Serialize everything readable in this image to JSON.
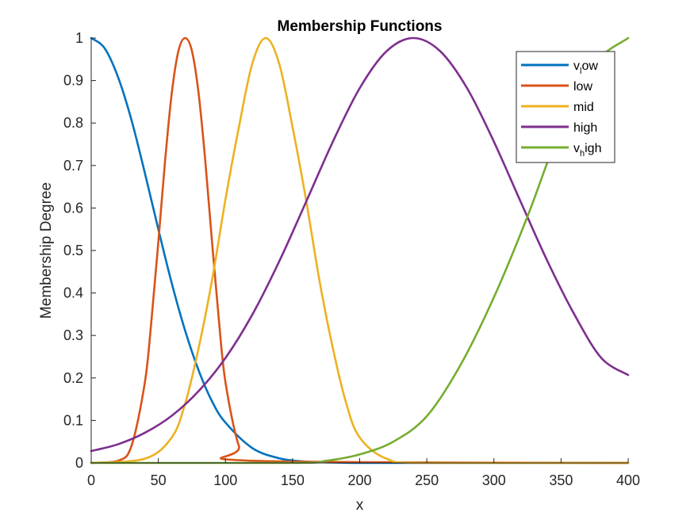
{
  "chart_data": {
    "type": "line",
    "title": "Membership Functions",
    "xlabel": "x",
    "ylabel": "Membership Degree",
    "xlim": [
      0,
      400
    ],
    "ylim": [
      0,
      1
    ],
    "xticks": [
      "0",
      "50",
      "100",
      "150",
      "200",
      "250",
      "300",
      "350",
      "400"
    ],
    "yticks": [
      "0",
      "0.1",
      "0.2",
      "0.3",
      "0.4",
      "0.5",
      "0.6",
      "0.7",
      "0.8",
      "0.9",
      "1"
    ],
    "grid": false,
    "legend_position": "top-right",
    "series": [
      {
        "name": "v_low",
        "legend_main": "v",
        "legend_sub": "l",
        "legend_rest": "ow",
        "color": "#0072BD",
        "x": [
          0,
          10,
          20,
          30,
          40,
          50,
          60,
          70,
          80,
          90,
          100,
          120,
          140,
          160,
          180,
          200,
          250,
          300,
          400
        ],
        "y": [
          1.0,
          0.976,
          0.908,
          0.807,
          0.682,
          0.55,
          0.423,
          0.311,
          0.218,
          0.145,
          0.095,
          0.035,
          0.011,
          0.003,
          0.001,
          0.0,
          0.0,
          0.0,
          0.0
        ]
      },
      {
        "name": "low",
        "color": "#D95319",
        "x": [
          0,
          20,
          30,
          40,
          45,
          50,
          55,
          60,
          65,
          70,
          75,
          80,
          85,
          90,
          95,
          100,
          110,
          120,
          400
        ],
        "y": [
          0.0,
          0.005,
          0.04,
          0.19,
          0.34,
          0.52,
          0.71,
          0.87,
          0.97,
          1.0,
          0.97,
          0.87,
          0.71,
          0.52,
          0.34,
          0.19,
          0.04,
          0.005,
          0.0
        ]
      },
      {
        "name": "mid",
        "color": "#EDB120",
        "x": [
          0,
          40,
          60,
          70,
          80,
          90,
          100,
          110,
          120,
          130,
          140,
          150,
          160,
          170,
          180,
          190,
          200,
          220,
          250,
          400
        ],
        "y": [
          0.0,
          0.01,
          0.06,
          0.14,
          0.27,
          0.43,
          0.62,
          0.79,
          0.94,
          1.0,
          0.94,
          0.79,
          0.62,
          0.43,
          0.27,
          0.14,
          0.06,
          0.01,
          0.0,
          0.0
        ]
      },
      {
        "name": "high",
        "color": "#7E2F8E",
        "x": [
          0,
          20,
          40,
          60,
          80,
          100,
          120,
          140,
          160,
          180,
          200,
          220,
          240,
          260,
          280,
          300,
          320,
          340,
          360,
          380,
          400
        ],
        "y": [
          0.028,
          0.044,
          0.071,
          0.111,
          0.169,
          0.247,
          0.349,
          0.474,
          0.614,
          0.756,
          0.882,
          0.969,
          1.0,
          0.969,
          0.882,
          0.756,
          0.614,
          0.474,
          0.349,
          0.247,
          0.207
        ]
      },
      {
        "name": "v_high",
        "legend_main": "v",
        "legend_sub": "h",
        "legend_rest": "igh",
        "color": "#77AC30",
        "x": [
          0,
          150,
          175,
          200,
          225,
          250,
          275,
          300,
          325,
          350,
          375,
          400
        ],
        "y": [
          0.0,
          0.0,
          0.005,
          0.02,
          0.05,
          0.11,
          0.23,
          0.39,
          0.58,
          0.79,
          0.94,
          1.0
        ]
      }
    ]
  }
}
